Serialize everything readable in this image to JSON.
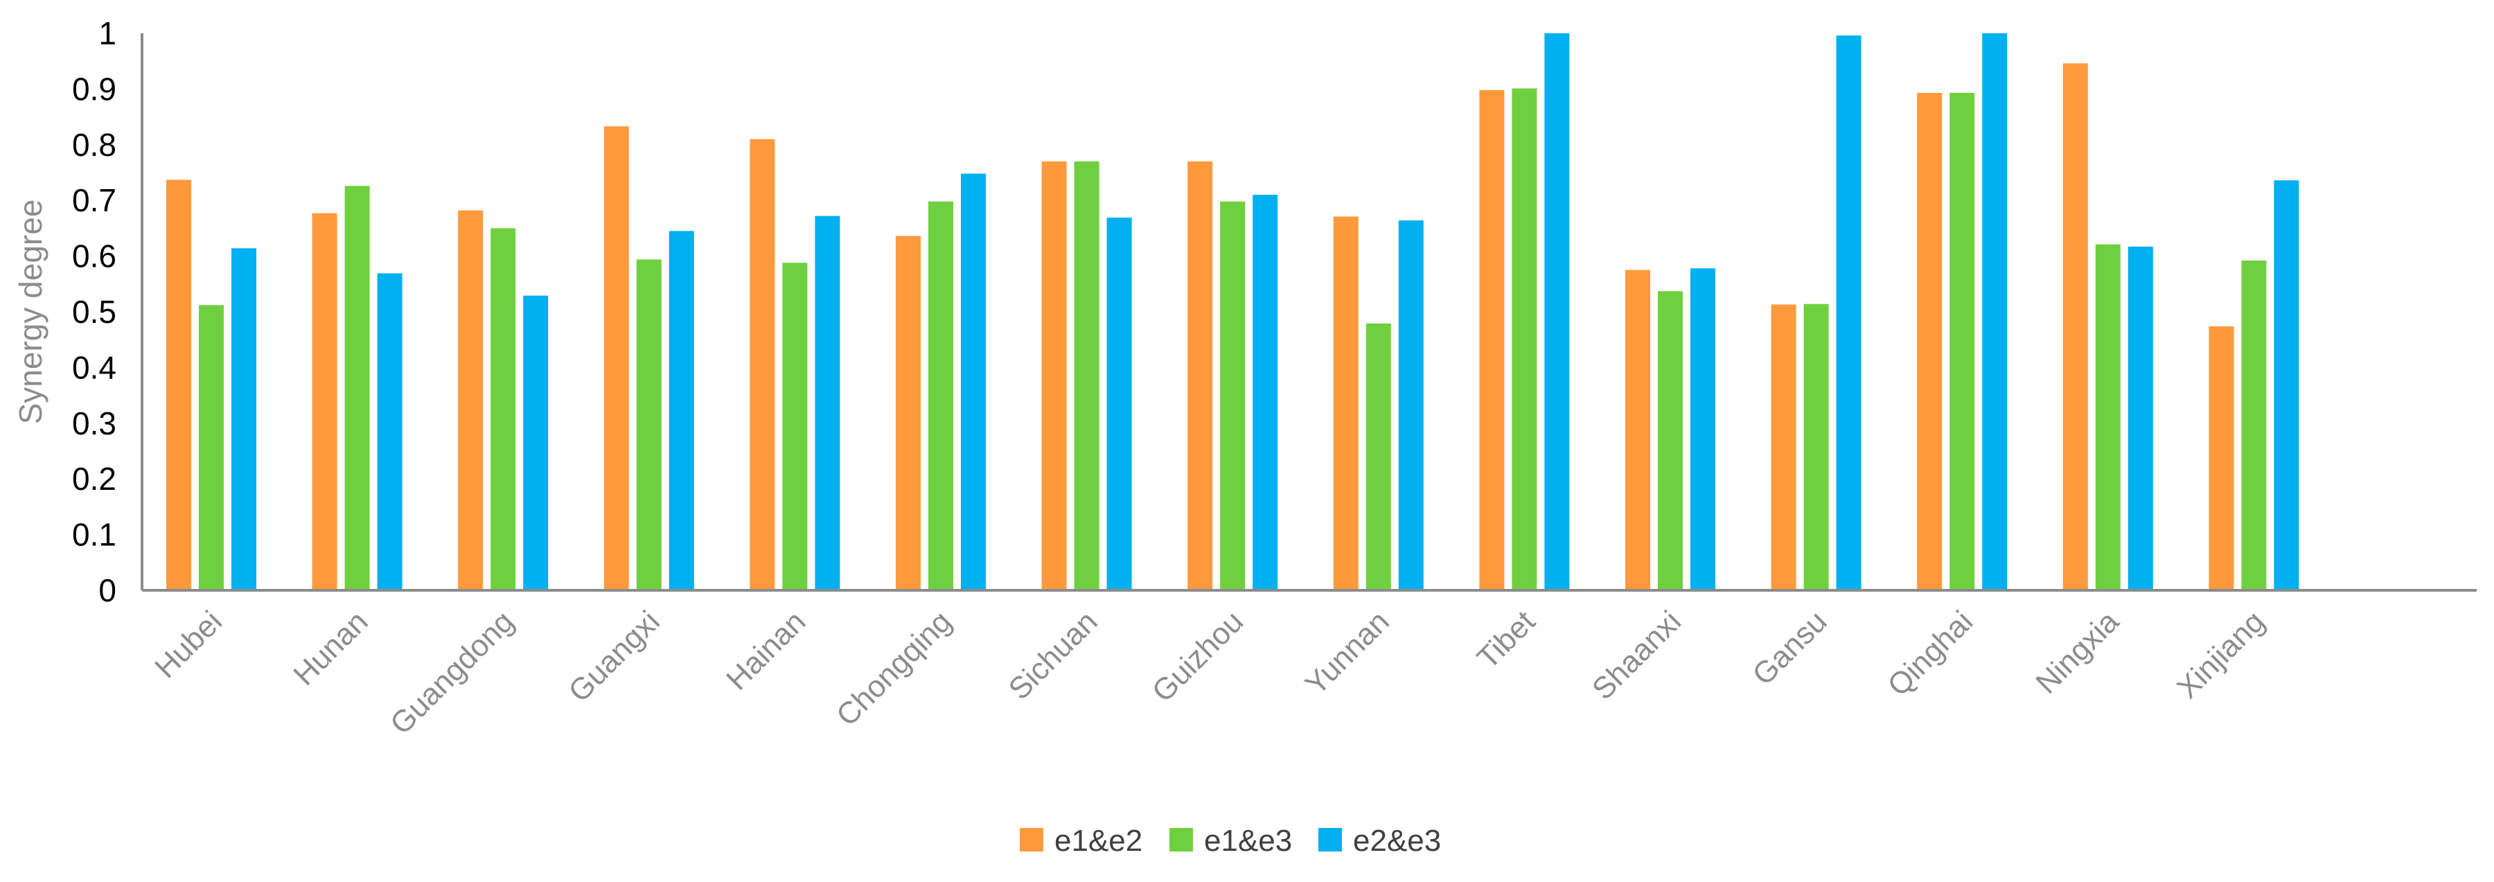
{
  "chart_data": {
    "type": "bar",
    "title": "",
    "xlabel": "",
    "ylabel": "Synergy degree",
    "ylim": [
      0,
      1
    ],
    "yticks": [
      "0",
      "0.1",
      "0.2",
      "0.3",
      "0.4",
      "0.5",
      "0.6",
      "0.7",
      "0.8",
      "0.9",
      "1"
    ],
    "grid": false,
    "legend_position": "bottom",
    "categories": [
      "Hubei",
      "Hunan",
      "Guangdong",
      "Guangxi",
      "Hainan",
      "Chongqing",
      "Sichuan",
      "Guizhou",
      "Yunnan",
      "Tibet",
      "Shaanxi",
      "Gansu",
      "Qinghai",
      "Ningxia",
      "Xinjiang"
    ],
    "series": [
      {
        "name": "e1&e2",
        "color": "#FF9A3C",
        "values": [
          0.737,
          0.677,
          0.682,
          0.833,
          0.81,
          0.636,
          0.77,
          0.77,
          0.671,
          0.898,
          0.575,
          0.513,
          0.893,
          0.946,
          0.474
        ]
      },
      {
        "name": "e1&e3",
        "color": "#6FD03F",
        "values": [
          0.512,
          0.726,
          0.65,
          0.594,
          0.588,
          0.698,
          0.77,
          0.698,
          0.479,
          0.901,
          0.537,
          0.514,
          0.893,
          0.621,
          0.592
        ]
      },
      {
        "name": "e2&e3",
        "color": "#00B0F0",
        "values": [
          0.614,
          0.569,
          0.529,
          0.645,
          0.672,
          0.748,
          0.669,
          0.71,
          0.664,
          1.0,
          0.578,
          0.996,
          1.0,
          0.617,
          0.736
        ]
      }
    ]
  }
}
